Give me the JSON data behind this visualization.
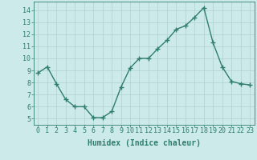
{
  "x": [
    0,
    1,
    2,
    3,
    4,
    5,
    6,
    7,
    8,
    9,
    10,
    11,
    12,
    13,
    14,
    15,
    16,
    17,
    18,
    19,
    20,
    21,
    22,
    23
  ],
  "y": [
    8.8,
    9.3,
    7.9,
    6.6,
    6.0,
    6.0,
    5.1,
    5.1,
    5.6,
    7.6,
    9.2,
    10.0,
    10.0,
    10.8,
    11.5,
    12.4,
    12.7,
    13.4,
    14.2,
    11.3,
    9.3,
    8.1,
    7.9,
    7.8
  ],
  "line_color": "#2e7d6e",
  "marker": "+",
  "marker_size": 4,
  "linewidth": 1.0,
  "xlabel": "Humidex (Indice chaleur)",
  "xlabel_fontsize": 7,
  "xlabel_color": "#2e7d6e",
  "ylabel_ticks": [
    5,
    6,
    7,
    8,
    9,
    10,
    11,
    12,
    13,
    14
  ],
  "xlim": [
    -0.5,
    23.5
  ],
  "ylim": [
    4.5,
    14.7
  ],
  "bg_color": "#cdeaea",
  "grid_color": "#b0d0d0",
  "tick_color": "#2e7d6e",
  "tick_fontsize": 6
}
